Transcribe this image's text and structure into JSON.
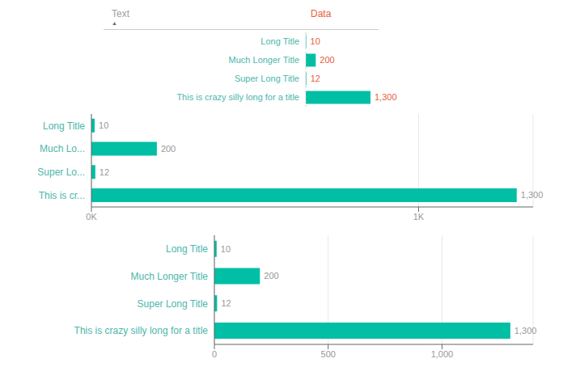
{
  "chart_data": [
    {
      "type": "table",
      "columns": [
        "Text",
        "Data"
      ],
      "annotations": [
        "▲"
      ],
      "categories": [
        "Long Title",
        "Much Longer Title",
        "Super Long Title",
        "This is crazy silly long for a title"
      ],
      "values": [
        10,
        200,
        12,
        1300
      ],
      "value_labels": [
        "10",
        "200",
        "12",
        "1,300"
      ],
      "data_labels": true,
      "orientation": "horizontal",
      "color": "#00BFA5"
    },
    {
      "type": "bar",
      "orientation": "horizontal",
      "categories": [
        "Long Title",
        "Much Lo...",
        "Super Lo...",
        "This is cr..."
      ],
      "values": [
        10,
        200,
        12,
        1300
      ],
      "value_labels": [
        "10",
        "200",
        "12",
        "1,300"
      ],
      "data_labels": true,
      "color": "#00BFA5",
      "xlim": [
        0,
        1350
      ],
      "xticks": [
        {
          "value": 0,
          "label": "0K"
        },
        {
          "value": 1000,
          "label": "1K"
        }
      ],
      "grid": true
    },
    {
      "type": "bar",
      "orientation": "horizontal",
      "categories": [
        "Long Title",
        "Much Longer Title",
        "Super Long Title",
        "This is crazy silly long for a title"
      ],
      "values": [
        10,
        200,
        12,
        1300
      ],
      "value_labels": [
        "10",
        "200",
        "12",
        "1,300"
      ],
      "data_labels": true,
      "color": "#00BFA5",
      "xlim": [
        0,
        1400
      ],
      "xticks": [
        0,
        500,
        {
          "value": 1000,
          "label": "1,000"
        }
      ],
      "grid": true
    }
  ]
}
